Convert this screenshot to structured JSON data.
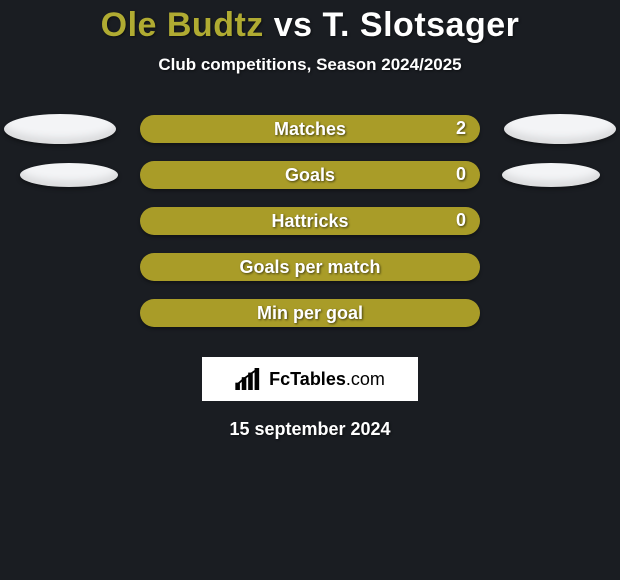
{
  "background_color": "#1a1d22",
  "title": {
    "player1": "Ole Budtz",
    "vs": "vs",
    "player2": "T. Slotsager",
    "color_p1": "#b0ab32",
    "fontsize": 34
  },
  "subtitle": {
    "text": "Club competitions, Season 2024/2025",
    "fontsize": 17
  },
  "rows": [
    {
      "label": "Matches",
      "left": "",
      "right": "2",
      "color": "#a99c28",
      "show_ell_left": true,
      "show_ell_right": true,
      "ell_narrow": false
    },
    {
      "label": "Goals",
      "left": "",
      "right": "0",
      "color": "#a99c28",
      "show_ell_left": true,
      "show_ell_right": true,
      "ell_narrow": true
    },
    {
      "label": "Hattricks",
      "left": "",
      "right": "0",
      "color": "#a99c28",
      "show_ell_left": false,
      "show_ell_right": false,
      "ell_narrow": false
    },
    {
      "label": "Goals per match",
      "left": "",
      "right": "",
      "color": "#a99c28",
      "show_ell_left": false,
      "show_ell_right": false,
      "ell_narrow": false
    },
    {
      "label": "Min per goal",
      "left": "",
      "right": "",
      "color": "#a99c28",
      "show_ell_left": false,
      "show_ell_right": false,
      "ell_narrow": false
    }
  ],
  "ellipse_color": "#f3f4f6",
  "brand": {
    "name": "FcTables",
    "domain": ".com"
  },
  "date": "15 september 2024"
}
